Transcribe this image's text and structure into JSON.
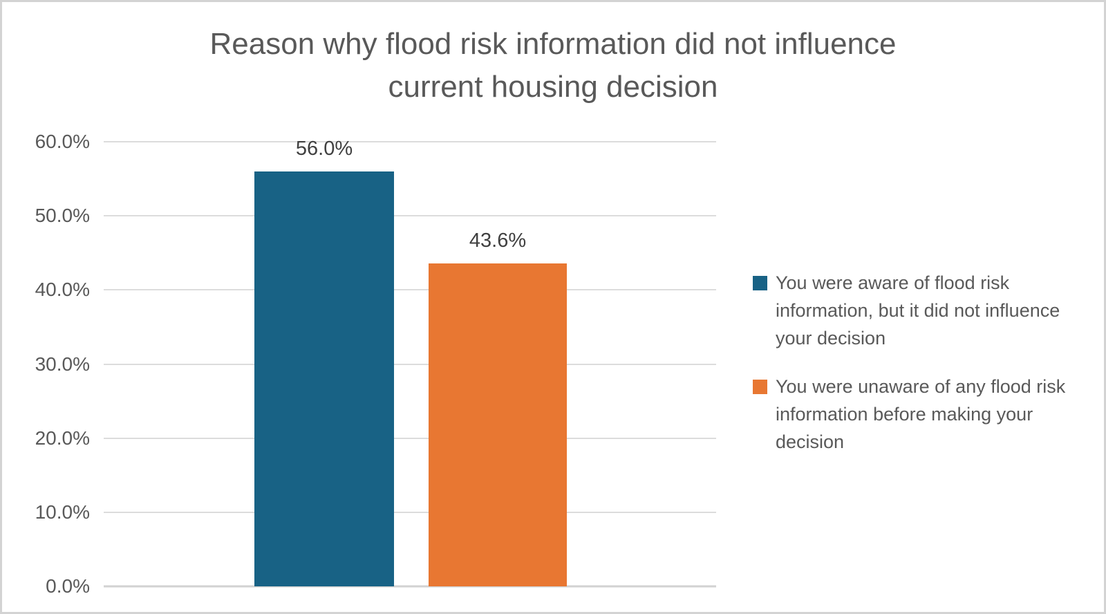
{
  "chart": {
    "title_lines": [
      "Reason why flood risk information did not influence",
      "current housing decision"
    ]
  },
  "chart_data": {
    "type": "bar",
    "title": "Reason why flood risk information did not influence current housing decision",
    "categories": [
      "You were aware of flood risk information, but it did not influence your decision",
      "You were unaware of any flood risk information before making your decision"
    ],
    "values": [
      56.0,
      43.6
    ],
    "data_labels": [
      "56.0%",
      "43.6%"
    ],
    "bar_colors": [
      "#186285",
      "#E87732"
    ],
    "xlabel": "",
    "ylabel": "",
    "ylim": [
      0,
      60
    ],
    "ytick_step": 10,
    "yticks": [
      "0.0%",
      "10.0%",
      "20.0%",
      "30.0%",
      "40.0%",
      "50.0%",
      "60.0%"
    ],
    "grid": true,
    "legend_position": "right"
  },
  "legend": {
    "items": [
      {
        "label": "You were aware of flood risk information, but it did not influence your decision",
        "color": "#186285"
      },
      {
        "label": "You were unaware of any flood risk information before making your decision",
        "color": "#E87732"
      }
    ]
  },
  "colors": {
    "title_text": "#595959",
    "axis_label": "#595959",
    "data_label": "#404040",
    "gridline": "#DCDCDC",
    "background": "#FFFFFF",
    "border": "#D3D3D3"
  }
}
